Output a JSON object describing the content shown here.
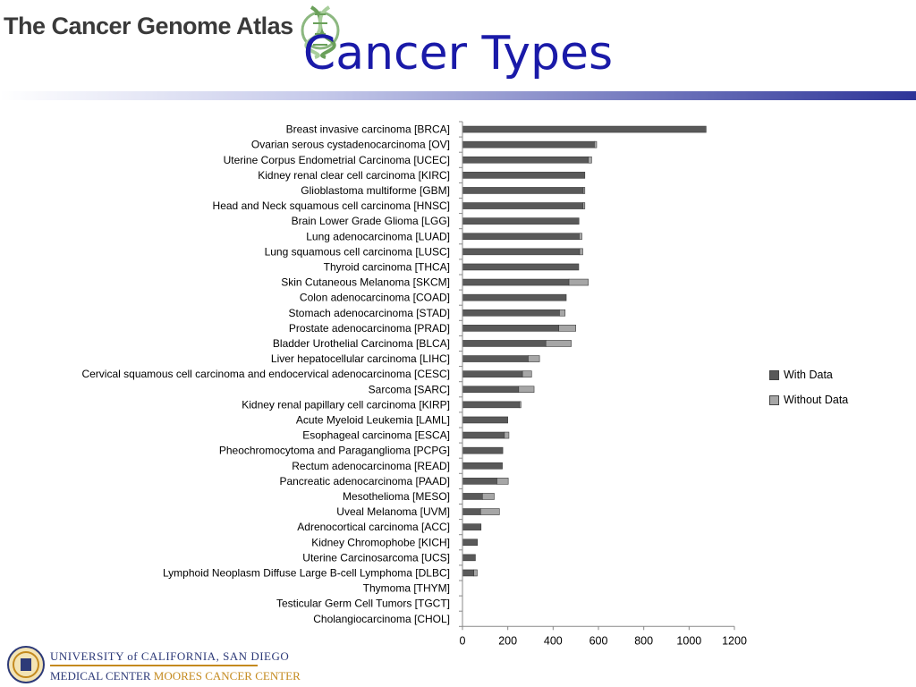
{
  "header": {
    "logo_text": "The Cancer Genome Atlas",
    "logo_icon": "dna-helix-icon",
    "title": "Cancer Types"
  },
  "colors": {
    "title": "#1a1aa8",
    "with_data": "#595959",
    "without_data": "#a6a6a6",
    "rule_end": "#2e3598"
  },
  "chart_data": {
    "type": "bar",
    "orientation": "horizontal",
    "stacked": true,
    "categories": [
      "Breast invasive carcinoma [BRCA]",
      "Ovarian serous cystadenocarcinoma [OV]",
      "Uterine Corpus Endometrial Carcinoma [UCEC]",
      "Kidney renal clear cell carcinoma [KIRC]",
      "Glioblastoma multiforme [GBM]",
      "Head and Neck squamous cell carcinoma [HNSC]",
      "Brain Lower Grade Glioma [LGG]",
      "Lung adenocarcinoma [LUAD]",
      "Lung squamous cell carcinoma [LUSC]",
      "Thyroid carcinoma [THCA]",
      "Skin Cutaneous Melanoma [SKCM]",
      "Colon adenocarcinoma [COAD]",
      "Stomach adenocarcinoma [STAD]",
      "Prostate adenocarcinoma [PRAD]",
      "Bladder Urothelial Carcinoma [BLCA]",
      "Liver hepatocellular carcinoma [LIHC]",
      "Cervical squamous cell carcinoma and endocervical adenocarcinoma [CESC]",
      "Sarcoma [SARC]",
      "Kidney renal papillary cell carcinoma [KIRP]",
      "Acute Myeloid Leukemia [LAML]",
      "Esophageal carcinoma [ESCA]",
      "Pheochromocytoma and Paraganglioma [PCPG]",
      "Rectum adenocarcinoma [READ]",
      "Pancreatic adenocarcinoma [PAAD]",
      "Mesothelioma [MESO]",
      "Uveal Melanoma [UVM]",
      "Adrenocortical carcinoma [ACC]",
      "Kidney Chromophobe [KICH]",
      "Uterine Carcinosarcoma [UCS]",
      "Lymphoid Neoplasm Diffuse Large B-cell Lymphoma [DLBC]",
      "Thymoma [THYM]",
      "Testicular Germ Cell Tumors [TGCT]",
      "Cholangiocarcinoma [CHOL]"
    ],
    "series": [
      {
        "name": "With Data",
        "color": "#595959",
        "values": [
          1075,
          582,
          555,
          540,
          533,
          532,
          514,
          515,
          517,
          513,
          470,
          458,
          428,
          425,
          368,
          290,
          265,
          248,
          252,
          200,
          185,
          178,
          176,
          152,
          88,
          80,
          82,
          66,
          57,
          50,
          0,
          0,
          0
        ]
      },
      {
        "name": "Without Data",
        "color": "#a6a6a6",
        "values": [
          0,
          10,
          15,
          0,
          7,
          8,
          0,
          12,
          14,
          0,
          85,
          0,
          25,
          75,
          112,
          50,
          40,
          68,
          6,
          0,
          20,
          0,
          0,
          50,
          52,
          83,
          0,
          0,
          0,
          15,
          0,
          0,
          0
        ]
      }
    ],
    "xlim": [
      0,
      1200
    ],
    "xticks": [
      "0",
      "200",
      "400",
      "600",
      "800",
      "1000",
      "1200"
    ],
    "legend": {
      "position": "right",
      "entries": [
        "With Data",
        "Without Data"
      ]
    },
    "grid": false
  },
  "footer": {
    "university": "UNIVERSITY of CALIFORNIA, SAN DIEGO",
    "center_part1": "MEDICAL CENTER",
    "center_part2": "MOORES CANCER CENTER",
    "seal_icon": "university-seal-icon"
  }
}
